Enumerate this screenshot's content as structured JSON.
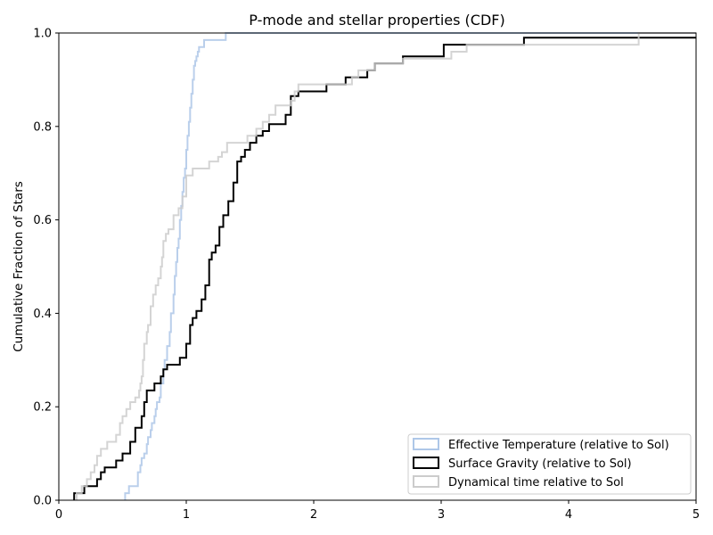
{
  "chart_data": {
    "type": "line",
    "title": "P-mode and stellar properties (CDF)",
    "xlabel": "",
    "ylabel": "Cumulative Fraction of Stars",
    "xlim": [
      0,
      5
    ],
    "ylim": [
      0,
      1
    ],
    "xticks": [
      "0",
      "1",
      "2",
      "3",
      "4",
      "5"
    ],
    "yticks": [
      "0.0",
      "0.2",
      "0.4",
      "0.6",
      "0.8",
      "1.0"
    ],
    "legend_position": "bottom-right",
    "series": [
      {
        "name": "Effective Temperature (relative to Sol)",
        "color": "#aec7e8",
        "x": [
          0.52,
          0.55,
          0.62,
          0.64,
          0.65,
          0.67,
          0.69,
          0.7,
          0.72,
          0.73,
          0.75,
          0.76,
          0.77,
          0.79,
          0.8,
          0.82,
          0.83,
          0.85,
          0.87,
          0.88,
          0.9,
          0.91,
          0.92,
          0.93,
          0.94,
          0.95,
          0.96,
          0.97,
          0.98,
          0.99,
          1.0,
          1.01,
          1.02,
          1.03,
          1.04,
          1.05,
          1.06,
          1.07,
          1.08,
          1.09,
          1.1,
          1.12,
          1.14,
          1.16,
          1.31
        ],
        "y": [
          0.015,
          0.03,
          0.06,
          0.075,
          0.09,
          0.1,
          0.12,
          0.135,
          0.15,
          0.165,
          0.18,
          0.195,
          0.21,
          0.22,
          0.25,
          0.28,
          0.3,
          0.33,
          0.36,
          0.4,
          0.44,
          0.48,
          0.51,
          0.54,
          0.56,
          0.6,
          0.63,
          0.66,
          0.69,
          0.71,
          0.75,
          0.78,
          0.81,
          0.84,
          0.87,
          0.9,
          0.93,
          0.94,
          0.95,
          0.96,
          0.97,
          0.97,
          0.985,
          0.985,
          1.0
        ]
      },
      {
        "name": "Surface Gravity (relative to Sol)",
        "color": "#000000",
        "x": [
          0.12,
          0.2,
          0.3,
          0.33,
          0.36,
          0.45,
          0.5,
          0.56,
          0.6,
          0.65,
          0.67,
          0.69,
          0.75,
          0.8,
          0.82,
          0.85,
          0.95,
          1.0,
          1.03,
          1.05,
          1.08,
          1.12,
          1.15,
          1.18,
          1.2,
          1.23,
          1.26,
          1.29,
          1.33,
          1.37,
          1.4,
          1.43,
          1.46,
          1.5,
          1.55,
          1.6,
          1.65,
          1.78,
          1.82,
          1.88,
          2.1,
          2.25,
          2.42,
          2.48,
          2.7,
          3.02,
          3.65
        ],
        "y": [
          0.015,
          0.03,
          0.045,
          0.06,
          0.07,
          0.085,
          0.1,
          0.125,
          0.155,
          0.18,
          0.21,
          0.235,
          0.25,
          0.265,
          0.28,
          0.29,
          0.305,
          0.335,
          0.375,
          0.39,
          0.405,
          0.43,
          0.46,
          0.515,
          0.53,
          0.545,
          0.585,
          0.61,
          0.64,
          0.68,
          0.725,
          0.735,
          0.75,
          0.765,
          0.78,
          0.79,
          0.805,
          0.825,
          0.865,
          0.875,
          0.89,
          0.905,
          0.92,
          0.935,
          0.95,
          0.975,
          0.99
        ]
      },
      {
        "name": "Dynamical time relative to Sol",
        "color": "#cccccc",
        "x": [
          0.14,
          0.18,
          0.22,
          0.25,
          0.28,
          0.3,
          0.33,
          0.38,
          0.45,
          0.48,
          0.5,
          0.53,
          0.56,
          0.6,
          0.63,
          0.64,
          0.65,
          0.66,
          0.67,
          0.69,
          0.7,
          0.72,
          0.74,
          0.76,
          0.78,
          0.8,
          0.81,
          0.82,
          0.84,
          0.86,
          0.9,
          0.94,
          0.97,
          1.0,
          1.05,
          1.18,
          1.25,
          1.28,
          1.32,
          1.48,
          1.55,
          1.6,
          1.65,
          1.7,
          1.82,
          1.85,
          1.88,
          2.3,
          2.35,
          2.48,
          2.7,
          3.08,
          3.2,
          3.28,
          4.55
        ],
        "y": [
          0.015,
          0.03,
          0.045,
          0.06,
          0.075,
          0.095,
          0.11,
          0.125,
          0.14,
          0.165,
          0.18,
          0.195,
          0.21,
          0.22,
          0.235,
          0.25,
          0.265,
          0.3,
          0.335,
          0.36,
          0.375,
          0.415,
          0.44,
          0.46,
          0.475,
          0.5,
          0.52,
          0.555,
          0.57,
          0.58,
          0.61,
          0.625,
          0.65,
          0.695,
          0.71,
          0.725,
          0.735,
          0.745,
          0.765,
          0.78,
          0.795,
          0.81,
          0.825,
          0.845,
          0.855,
          0.875,
          0.89,
          0.905,
          0.92,
          0.935,
          0.945,
          0.96,
          0.975,
          0.975,
          1.0
        ]
      }
    ]
  }
}
